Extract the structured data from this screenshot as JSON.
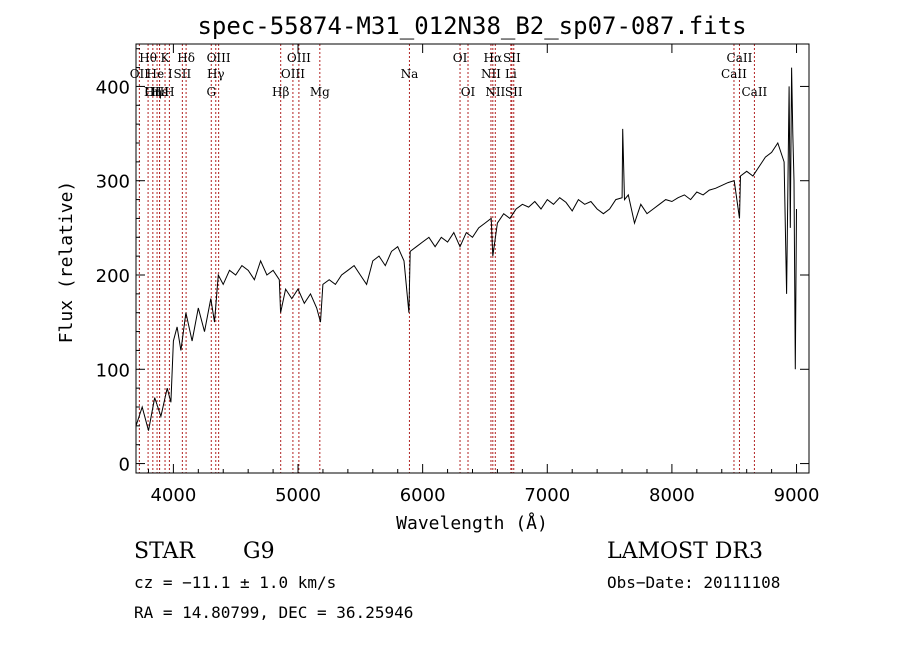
{
  "chart_data": {
    "type": "line",
    "title": "spec-55874-M31_012N38_B2_sp07-087.fits",
    "xlabel": "Wavelength (Å)",
    "ylabel": "Flux (relative)",
    "xlim": [
      3700,
      9100
    ],
    "ylim": [
      -10,
      445
    ],
    "xticks": [
      4000,
      5000,
      6000,
      7000,
      8000,
      9000
    ],
    "yticks": [
      0,
      100,
      200,
      300,
      400
    ],
    "series": [
      {
        "name": "flux",
        "x": [
          3700,
          3750,
          3800,
          3850,
          3900,
          3950,
          3980,
          4000,
          4030,
          4060,
          4100,
          4150,
          4200,
          4250,
          4300,
          4330,
          4360,
          4400,
          4450,
          4500,
          4550,
          4600,
          4650,
          4700,
          4750,
          4800,
          4850,
          4860,
          4900,
          4950,
          5000,
          5050,
          5100,
          5150,
          5180,
          5200,
          5250,
          5300,
          5350,
          5400,
          5450,
          5500,
          5550,
          5600,
          5650,
          5700,
          5750,
          5800,
          5850,
          5890,
          5900,
          5950,
          6000,
          6050,
          6100,
          6150,
          6200,
          6250,
          6300,
          6350,
          6400,
          6450,
          6500,
          6550,
          6563,
          6600,
          6650,
          6700,
          6750,
          6800,
          6850,
          6900,
          6950,
          7000,
          7050,
          7100,
          7150,
          7200,
          7250,
          7300,
          7350,
          7400,
          7450,
          7500,
          7550,
          7600,
          7605,
          7620,
          7650,
          7700,
          7750,
          7800,
          7850,
          7900,
          7950,
          8000,
          8050,
          8100,
          8150,
          8200,
          8250,
          8300,
          8350,
          8400,
          8450,
          8500,
          8542,
          8550,
          8600,
          8650,
          8700,
          8750,
          8800,
          8850,
          8900,
          8920,
          8940,
          8950,
          8960,
          8970,
          8980,
          8990,
          9000
        ],
        "y": [
          40,
          60,
          35,
          70,
          50,
          80,
          65,
          130,
          145,
          120,
          160,
          130,
          165,
          140,
          175,
          150,
          200,
          190,
          205,
          200,
          210,
          205,
          195,
          215,
          200,
          205,
          195,
          160,
          185,
          175,
          185,
          170,
          180,
          165,
          150,
          190,
          195,
          190,
          200,
          205,
          210,
          200,
          190,
          215,
          220,
          210,
          225,
          230,
          215,
          160,
          225,
          230,
          235,
          240,
          230,
          240,
          235,
          245,
          230,
          245,
          240,
          250,
          255,
          260,
          220,
          255,
          265,
          260,
          270,
          275,
          272,
          278,
          270,
          280,
          275,
          282,
          277,
          268,
          280,
          275,
          278,
          270,
          265,
          270,
          280,
          282,
          355,
          280,
          285,
          255,
          275,
          265,
          270,
          275,
          280,
          278,
          282,
          285,
          280,
          288,
          285,
          290,
          292,
          295,
          298,
          300,
          260,
          305,
          310,
          305,
          315,
          325,
          330,
          340,
          320,
          180,
          400,
          250,
          420,
          350,
          300,
          100,
          270
        ]
      }
    ],
    "lines": [
      {
        "label": "Hθ",
        "wave": 3797,
        "row": 1
      },
      {
        "label": "OII",
        "wave": 3727,
        "row": 2
      },
      {
        "label": "OIII",
        "wave": 3869,
        "row": 3
      },
      {
        "label": "Hε",
        "wave": 3889,
        "row": 3
      },
      {
        "label": "He I",
        "wave": 3889,
        "row": 2
      },
      {
        "label": "K",
        "wave": 3933,
        "row": 1
      },
      {
        "label": "H",
        "wave": 3968,
        "row": 3
      },
      {
        "label": "Hη",
        "wave": 3835,
        "row": 3
      },
      {
        "label": "SII",
        "wave": 4072,
        "row": 2
      },
      {
        "label": "Hδ",
        "wave": 4102,
        "row": 1
      },
      {
        "label": "Hγ",
        "wave": 4340,
        "row": 2
      },
      {
        "label": "G",
        "wave": 4304,
        "row": 3
      },
      {
        "label": "OIII",
        "wave": 4363,
        "row": 1
      },
      {
        "label": "Hβ",
        "wave": 4861,
        "row": 3
      },
      {
        "label": "OIII",
        "wave": 4959,
        "row": 2
      },
      {
        "label": "OIII",
        "wave": 5007,
        "row": 1
      },
      {
        "label": "Mg",
        "wave": 5175,
        "row": 3
      },
      {
        "label": "Na",
        "wave": 5894,
        "row": 2
      },
      {
        "label": "OI",
        "wave": 6300,
        "row": 1
      },
      {
        "label": "OI",
        "wave": 6364,
        "row": 3
      },
      {
        "label": "NII",
        "wave": 6548,
        "row": 2
      },
      {
        "label": "Hα",
        "wave": 6563,
        "row": 1
      },
      {
        "label": "NII",
        "wave": 6583,
        "row": 3
      },
      {
        "label": "SII",
        "wave": 6716,
        "row": 1
      },
      {
        "label": "Li",
        "wave": 6708,
        "row": 2
      },
      {
        "label": "SII",
        "wave": 6731,
        "row": 3
      },
      {
        "label": "CaII",
        "wave": 8498,
        "row": 2
      },
      {
        "label": "CaII",
        "wave": 8542,
        "row": 1
      },
      {
        "label": "CaII",
        "wave": 8662,
        "row": 3
      }
    ]
  },
  "info": {
    "class": "STAR",
    "subclass": "G9",
    "survey": "LAMOST DR3",
    "cz": "cz = −11.1 ± 1.0 km/s",
    "obs_date": "Obs−Date: 20111108",
    "radec": "RA =  14.80799, DEC =  36.25946"
  },
  "colors": {
    "line_marker": "#b22222",
    "spectrum": "#000000"
  }
}
